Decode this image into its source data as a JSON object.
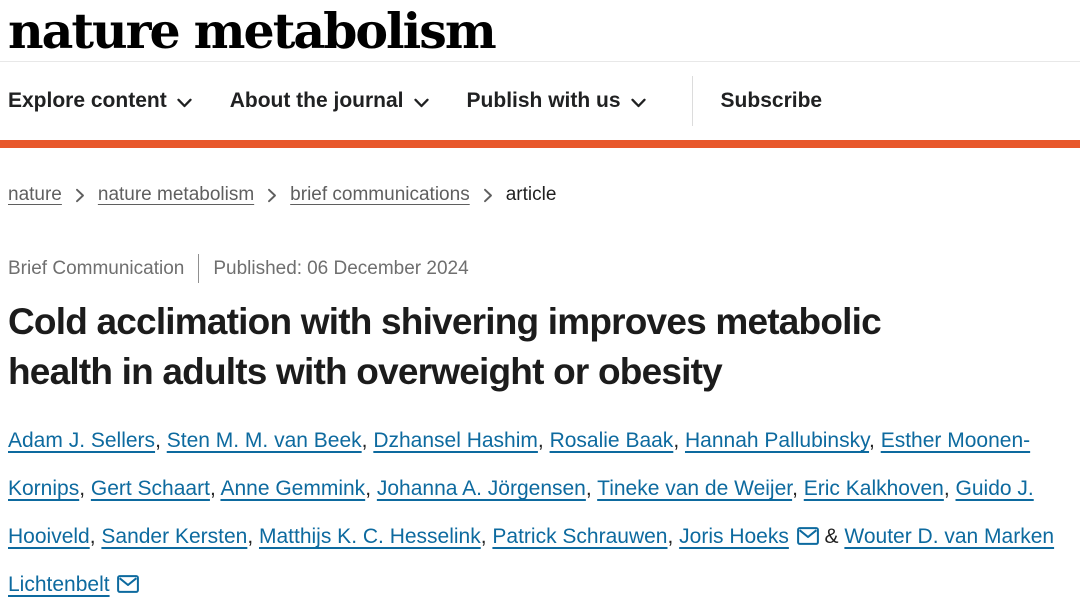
{
  "masthead": {
    "logo": "nature metabolism"
  },
  "nav": {
    "items": [
      {
        "label": "Explore content",
        "dropdown": true,
        "divider_before": false
      },
      {
        "label": "About the journal",
        "dropdown": true,
        "divider_before": false
      },
      {
        "label": "Publish with us",
        "dropdown": true,
        "divider_before": false
      },
      {
        "label": "Subscribe",
        "dropdown": false,
        "divider_before": true
      }
    ]
  },
  "breadcrumb": {
    "separator_icon": "chevron-right-icon",
    "items": [
      {
        "label": "nature",
        "link": true
      },
      {
        "label": "nature metabolism",
        "link": true
      },
      {
        "label": "brief communications",
        "link": true
      },
      {
        "label": "article",
        "link": false
      }
    ]
  },
  "article": {
    "type_label": "Brief Communication",
    "published_label": "Published:",
    "published_date": "06 December 2024",
    "title": "Cold acclimation with shivering improves metabolic health in adults with overweight or obesity",
    "author_separator": ", ",
    "last_author_conjunction": " & ",
    "email_icon_name": "envelope-icon",
    "authors": [
      {
        "name": "Adam J. Sellers",
        "email_icon": false
      },
      {
        "name": "Sten M. M. van Beek",
        "email_icon": false
      },
      {
        "name": "Dzhansel Hashim",
        "email_icon": false
      },
      {
        "name": "Rosalie Baak",
        "email_icon": false
      },
      {
        "name": "Hannah Pallubinsky",
        "email_icon": false
      },
      {
        "name": "Esther Moonen-Kornips",
        "email_icon": false
      },
      {
        "name": "Gert Schaart",
        "email_icon": false
      },
      {
        "name": "Anne Gemmink",
        "email_icon": false
      },
      {
        "name": "Johanna A. Jörgensen",
        "email_icon": false
      },
      {
        "name": "Tineke van de Weijer",
        "email_icon": false
      },
      {
        "name": "Eric Kalkhoven",
        "email_icon": false
      },
      {
        "name": "Guido J. Hooiveld",
        "email_icon": false
      },
      {
        "name": "Sander Kersten",
        "email_icon": false
      },
      {
        "name": "Matthijs K. C. Hesselink",
        "email_icon": false
      },
      {
        "name": "Patrick Schrauwen",
        "email_icon": false
      },
      {
        "name": "Joris Hoeks",
        "email_icon": true
      },
      {
        "name": "Wouter D. van Marken Lichtenbelt",
        "email_icon": true
      }
    ]
  },
  "colors": {
    "accent_orange": "#e8582b",
    "link_blue": "#0d6a9f",
    "breadcrumb_gray": "#5f5f5f",
    "meta_gray": "#6f6f6f"
  }
}
